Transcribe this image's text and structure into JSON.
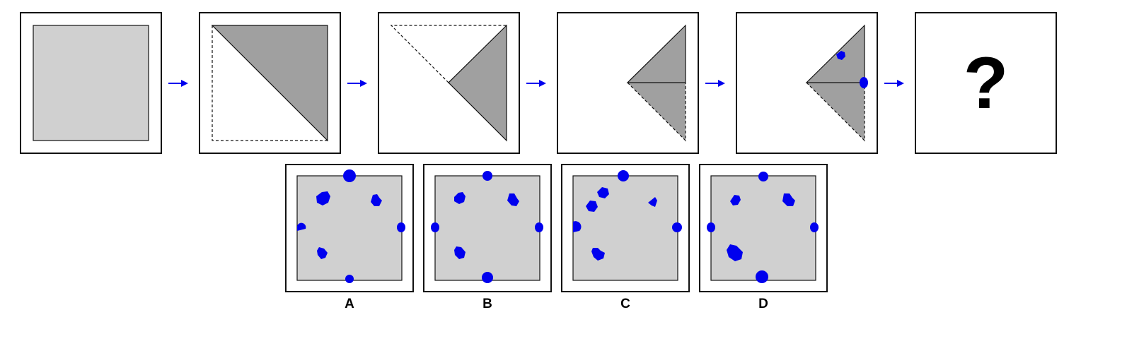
{
  "colors": {
    "paper_light": "#d0d0d0",
    "paper_dark": "#a0a0a0",
    "hole": "#0000ee",
    "arrow": "#0000ee",
    "border": "#111111"
  },
  "sequence": {
    "steps": [
      {
        "name": "unfolded-square-paper"
      },
      {
        "name": "first-diagonal-fold"
      },
      {
        "name": "second-fold"
      },
      {
        "name": "third-fold"
      },
      {
        "name": "punched-holes"
      }
    ],
    "question_text": "?"
  },
  "options": [
    {
      "label": "A"
    },
    {
      "label": "B"
    },
    {
      "label": "C"
    },
    {
      "label": "D"
    }
  ]
}
